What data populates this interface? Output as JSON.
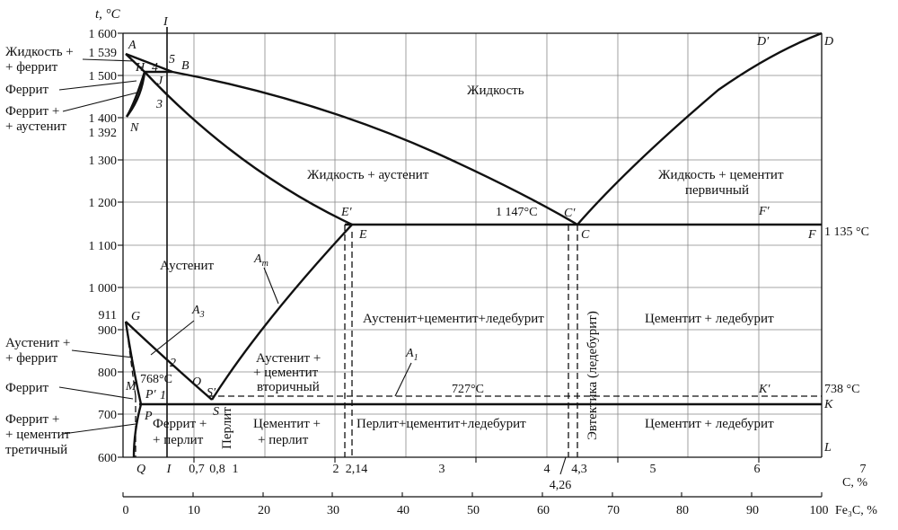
{
  "y_axis": {
    "title": "t, °C",
    "ticks": [
      {
        "v": 1600,
        "label": "1 600"
      },
      {
        "v": 1500,
        "label": "1 500"
      },
      {
        "v": 1400,
        "label": "1 400"
      },
      {
        "v": 1300,
        "label": "1 300"
      },
      {
        "v": 1200,
        "label": "1 200"
      },
      {
        "v": 1100,
        "label": "1 100"
      },
      {
        "v": 1000,
        "label": "1 000"
      },
      {
        "v": 900,
        "label": "900"
      },
      {
        "v": 800,
        "label": "800"
      },
      {
        "v": 700,
        "label": "700"
      },
      {
        "v": 600,
        "label": "600"
      }
    ],
    "extra_labels": [
      {
        "v": 1539,
        "label": "1 539"
      },
      {
        "v": 1392,
        "label": "1 392"
      },
      {
        "v": 911,
        "label": "911"
      }
    ],
    "range": [
      600,
      1600
    ]
  },
  "x_axis_carbon": {
    "title": "C, %",
    "range": [
      0,
      6.67
    ],
    "ticks": [
      {
        "v": 1,
        "label": "1"
      },
      {
        "v": 2,
        "label": "2"
      },
      {
        "v": 2.14,
        "label": "2,14"
      },
      {
        "v": 3,
        "label": "3"
      },
      {
        "v": 4,
        "label": "4"
      },
      {
        "v": 4.3,
        "label": "4,3"
      },
      {
        "v": 5,
        "label": "5"
      },
      {
        "v": 6,
        "label": "6"
      },
      {
        "v": 7,
        "label": "7"
      },
      {
        "v": 0.7,
        "label": "0,7"
      },
      {
        "v": 0.8,
        "label": "0,8"
      }
    ],
    "extra_labels": [
      {
        "v": 0.2,
        "label": "Q"
      },
      {
        "v": 0.5,
        "label": "I"
      },
      {
        "v": 4.26,
        "label": "4,26"
      }
    ]
  },
  "x_axis_cementite": {
    "title": "Fe₃C, %",
    "ticks": [
      "0",
      "10",
      "20",
      "30",
      "40",
      "50",
      "60",
      "70",
      "80",
      "90",
      "100"
    ]
  },
  "points": {
    "A": "A",
    "B": "B",
    "C": "C",
    "C2": "C′",
    "D": "D",
    "D2": "D′",
    "E": "E",
    "E2": "E′",
    "F": "F",
    "F2": "F′",
    "G": "G",
    "H": "H",
    "J": "J",
    "K": "K",
    "K2": "K′",
    "L": "L",
    "N": "N",
    "O": "O",
    "P": "P",
    "P2": "P′",
    "S": "S",
    "S2": "S′",
    "M": "M",
    "n1": "1",
    "n2": "2",
    "n3": "3",
    "n4": "4",
    "n5": "5",
    "I": "I"
  },
  "lines": {
    "Am": "A",
    "Am_sub": "m",
    "A3": "A",
    "A3_sub": "3",
    "A1": "A",
    "A1_sub": "1"
  },
  "temps": {
    "t1147": "1 147°C",
    "t1135": "1 135 °C",
    "t768": "768°C",
    "t727": "727°C",
    "t738": "738 °C"
  },
  "regions": {
    "liquid": "Жидкость",
    "liquid_austenite": "Жидкость + аустенит",
    "liquid_cementite_1": "Жидкость + цементит",
    "liquid_cementite_2": "первичный",
    "austenite": "Аустенит",
    "aust_cem_led": "Аустенит+цементит+ледебурит",
    "cem_led_upper": "Цементит + ледебурит",
    "aust_cem2_1": "Аустенит +",
    "aust_cem2_2": "+ цементит",
    "aust_cem2_3": "вторичный",
    "perl_cem_led": "Перлит+цементит+ледебурит",
    "cem_led_lower": "Цементит + ледебурит",
    "cem_perl_1": "Цементит +",
    "cem_perl_2": "+ перлит",
    "ferr_perl_1": "Феррит +",
    "ferr_perl_2": "+ перлит",
    "perlite": "Перлит",
    "eutectic": "Эвтектика (ледебурит)"
  },
  "side_labels": {
    "liq_ferr_1": "Жидкость +",
    "liq_ferr_2": "+ феррит",
    "ferrite_top": "Феррит",
    "ferr_aust_1": "Феррит +",
    "ferr_aust_2": "+ аустенит",
    "aust_ferr_1": "Аустенит +",
    "aust_ferr_2": "+ феррит",
    "ferrite_low": "Феррит",
    "ferr_cem3_1": "Феррит +",
    "ferr_cem3_2": "+ цементит",
    "ferr_cem3_3": "третичный"
  }
}
